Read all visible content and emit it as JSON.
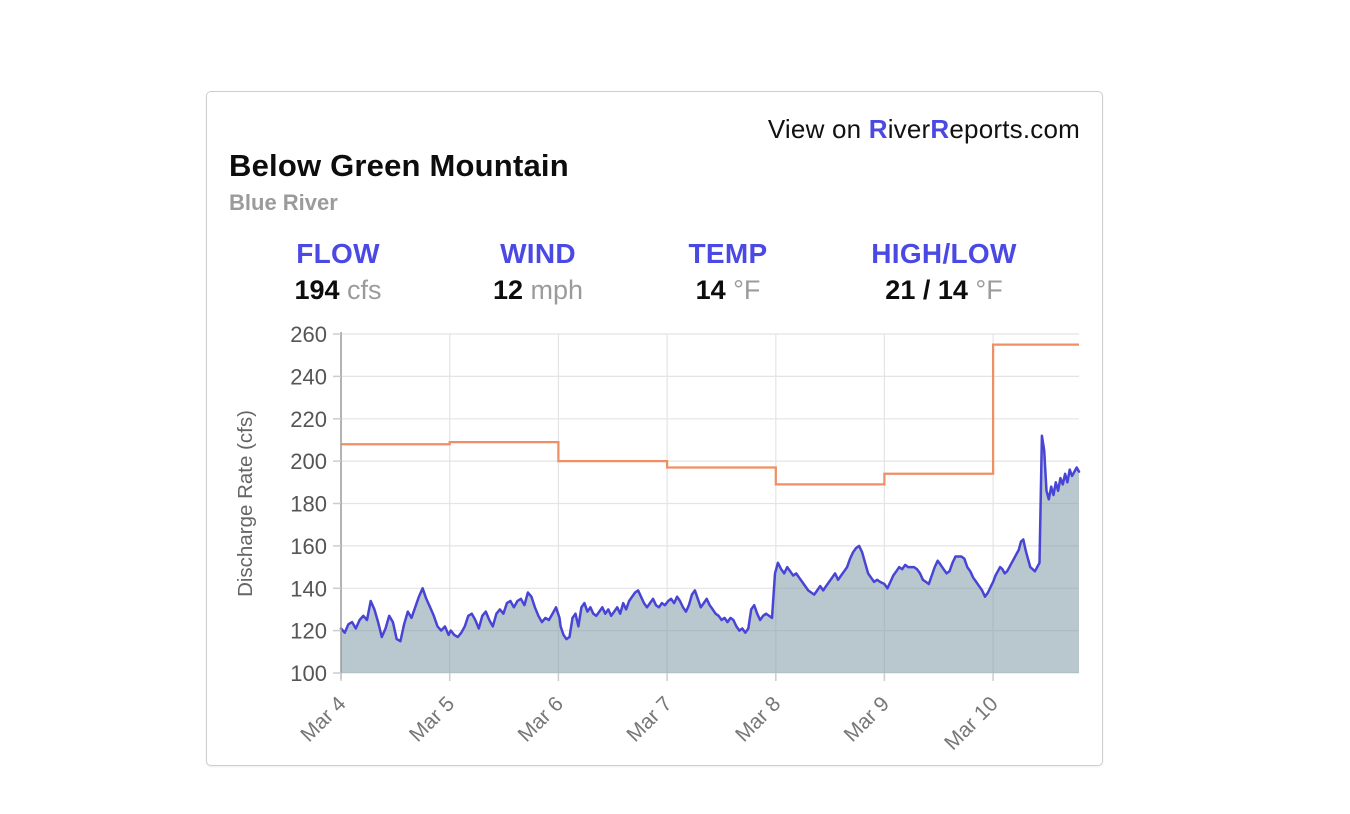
{
  "header": {
    "link": {
      "prefix": "View on ",
      "r1": "R",
      "mid": "iver",
      "r2": "R",
      "rest": "eports.com"
    }
  },
  "station": {
    "name": "Below Green Mountain",
    "river": "Blue River"
  },
  "stats": [
    {
      "id": "flow",
      "label": "FLOW",
      "value": "194",
      "unit": "cfs"
    },
    {
      "id": "wind",
      "label": "WIND",
      "value": "12",
      "unit": "mph"
    },
    {
      "id": "temp",
      "label": "TEMP",
      "value": "14",
      "unit": "°F"
    },
    {
      "id": "highlow",
      "label": "HIGH/LOW",
      "value": "21 / 14",
      "unit": "°F"
    }
  ],
  "colors": {
    "accent_indigo": "#4b49e4",
    "title_black": "#0d0d0d",
    "muted_gray": "#9b9b9b"
  },
  "chart_data": {
    "type": "area",
    "title": "",
    "xlabel": "",
    "ylabel": "Discharge Rate (cfs)",
    "ylim": [
      100,
      260
    ],
    "yticks": [
      100,
      120,
      140,
      160,
      180,
      200,
      220,
      240,
      260
    ],
    "x_range_days": [
      0,
      6.79
    ],
    "x_ticks": [
      {
        "day": 0,
        "label": "Mar 4"
      },
      {
        "day": 1,
        "label": "Mar 5"
      },
      {
        "day": 2,
        "label": "Mar 6"
      },
      {
        "day": 3,
        "label": "Mar 7"
      },
      {
        "day": 4,
        "label": "Mar 8"
      },
      {
        "day": 5,
        "label": "Mar 9"
      },
      {
        "day": 6,
        "label": "Mar 10"
      }
    ],
    "grid": true,
    "grid_color": "#e4e4e4",
    "axis_color": "#9a9a9a",
    "tick_color": "#cccccc",
    "tick_label_color": "#555555",
    "x_label_color": "#777777",
    "ylabel_color": "#666666",
    "legend": "none",
    "observed_series": {
      "name": "discharge-rate-observed",
      "unit": "cfs",
      "line_color": "#4845d6",
      "fill_color": "rgba(130,155,170,0.56)",
      "segments": [
        {
          "day_start": 0.0,
          "day_end": 0.99,
          "values": [
            121,
            119,
            123,
            124,
            121,
            125,
            127,
            125,
            134,
            130,
            124,
            117,
            121,
            127,
            124,
            116,
            115,
            123,
            129,
            126,
            131,
            136,
            140,
            135,
            131,
            127,
            122,
            120,
            122,
            118
          ]
        },
        {
          "day_start": 1.01,
          "day_end": 2.01,
          "values": [
            120,
            118,
            117,
            119,
            122,
            127,
            128,
            125,
            121,
            127,
            129,
            125,
            122,
            128,
            130,
            128,
            133,
            134,
            131,
            134,
            135,
            132,
            138,
            136,
            131,
            127,
            124,
            126,
            125,
            128,
            131,
            126
          ]
        },
        {
          "day_start": 2.02,
          "day_end": 2.98,
          "values": [
            122,
            118,
            116,
            117,
            126,
            128,
            122,
            131,
            133,
            129,
            131,
            128,
            127,
            129,
            131,
            128,
            130,
            127,
            129,
            131,
            128,
            133,
            130,
            134,
            136,
            138,
            139,
            136,
            133,
            131,
            133,
            135,
            132,
            131,
            133,
            132
          ]
        },
        {
          "day_start": 3.01,
          "day_end": 4.02,
          "values": [
            134,
            135,
            133,
            136,
            134,
            131,
            129,
            132,
            137,
            139,
            135,
            131,
            133,
            135,
            132,
            130,
            128,
            127,
            125,
            126,
            124,
            126,
            125,
            122,
            120,
            121,
            119,
            121,
            130,
            132,
            128,
            125,
            127,
            128,
            127,
            126,
            147,
            152
          ]
        },
        {
          "day_start": 4.05,
          "day_end": 4.96,
          "values": [
            149,
            147,
            150,
            148,
            146,
            147,
            145,
            143,
            141,
            139,
            138,
            137,
            139,
            141,
            139,
            141,
            143,
            145,
            147,
            144,
            146,
            148,
            150,
            154,
            157,
            159,
            160,
            157,
            152,
            147,
            145,
            143,
            144,
            143
          ]
        },
        {
          "day_start": 5.0,
          "day_end": 5.98,
          "values": [
            142,
            140,
            143,
            146,
            148,
            150,
            149,
            151,
            150,
            150,
            150,
            149,
            147,
            144,
            143,
            142,
            146,
            150,
            153,
            151,
            149,
            147,
            148,
            152,
            155,
            155,
            155,
            154,
            150,
            148,
            145,
            143,
            141,
            139,
            136,
            138,
            141
          ]
        },
        {
          "day_start": 6.0,
          "day_end": 6.79,
          "values": [
            143,
            146,
            148,
            150,
            149,
            147,
            148,
            150,
            152,
            154,
            156,
            158,
            162,
            163,
            158,
            154,
            150,
            149,
            148,
            150,
            152,
            212,
            205,
            186,
            182,
            188,
            184,
            190,
            186,
            192,
            189,
            194,
            190,
            196,
            193,
            195,
            197,
            195
          ]
        }
      ]
    },
    "reference_step_series": {
      "name": "daily-reference-discharge",
      "unit": "cfs",
      "color": "#ef8f65",
      "days": [
        0,
        1,
        2,
        3,
        4,
        5,
        6
      ],
      "values": [
        208,
        209,
        200,
        197,
        189,
        194,
        255
      ],
      "end_day": 6.79
    }
  }
}
